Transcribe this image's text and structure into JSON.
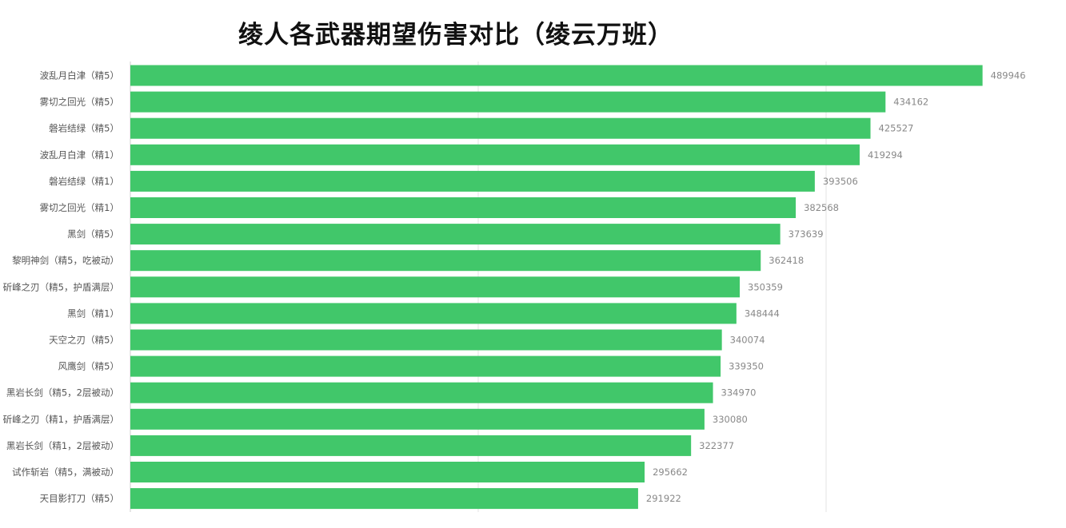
{
  "chart_data": {
    "type": "bar",
    "orientation": "horizontal",
    "title": "绫人各武器期望伤害对比（绫云万班）",
    "xlabel": "",
    "ylabel": "",
    "xlim": [
      0,
      500000
    ],
    "grid": true,
    "bar_color": "#41c76a",
    "categories": [
      "波乱月白津（精5）",
      "雾切之回光（精5）",
      "磐岩结绿（精5）",
      "波乱月白津（精1）",
      "磐岩结绿（精1）",
      "雾切之回光（精1）",
      "黑剑（精5）",
      "黎明神剑（精5，吃被动）",
      "斫峰之刃（精5，护盾满层）",
      "黑剑（精1）",
      "天空之刃（精5）",
      "风鹰剑（精5）",
      "黑岩长剑（精5，2层被动）",
      "斫峰之刃（精1，护盾满层）",
      "黑岩长剑（精1，2层被动）",
      "试作斩岩（精5，满被动）",
      "天目影打刀（精5）"
    ],
    "values": [
      489946,
      434162,
      425527,
      419294,
      393506,
      382568,
      373639,
      362418,
      350359,
      348444,
      340074,
      339350,
      334970,
      330080,
      322377,
      295662,
      291922
    ]
  }
}
